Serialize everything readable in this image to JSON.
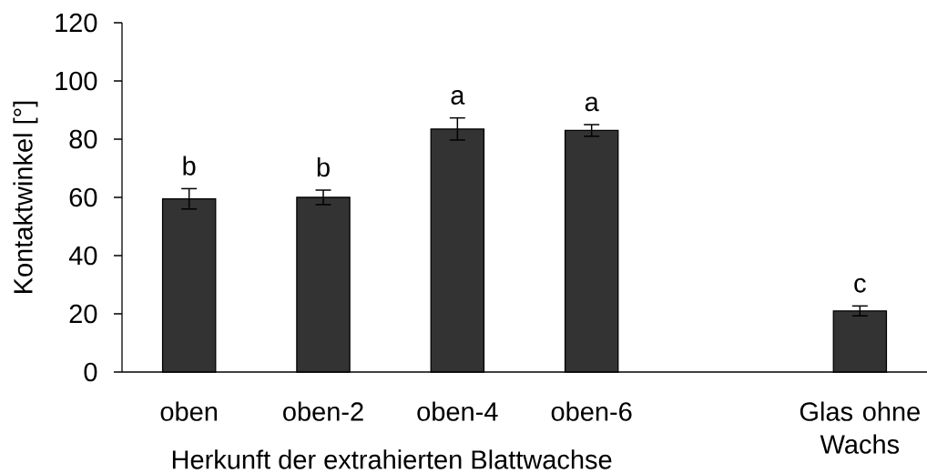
{
  "chart_data": {
    "type": "bar",
    "xlabel": "Herkunft der extrahierten Blattwachse",
    "ylabel": "Kontaktwinkel [°]",
    "categories": [
      "oben",
      "oben-2",
      "oben-4",
      "oben-6",
      null,
      "Glas ohne Wachs"
    ],
    "values": [
      59.5,
      60,
      83.5,
      83,
      null,
      21
    ],
    "errors": [
      3.5,
      2.5,
      3.8,
      2,
      null,
      1.7
    ],
    "color": "#333333",
    "ylim": [
      0,
      120
    ],
    "yticks": [
      0,
      20,
      40,
      60,
      80,
      100,
      120
    ],
    "annotations": [
      "b",
      "b",
      "a",
      "a",
      "c"
    ]
  }
}
